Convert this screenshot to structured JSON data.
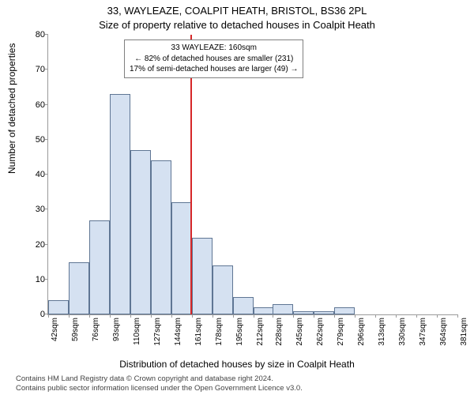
{
  "title_main": "33, WAYLEAZE, COALPIT HEATH, BRISTOL, BS36 2PL",
  "title_sub": "Size of property relative to detached houses in Coalpit Heath",
  "ylabel": "Number of detached properties",
  "xlabel": "Distribution of detached houses by size in Coalpit Heath",
  "footer_line1": "Contains HM Land Registry data © Crown copyright and database right 2024.",
  "footer_line2": "Contains public sector information licensed under the Open Government Licence v3.0.",
  "chart": {
    "type": "histogram",
    "ylim": [
      0,
      80
    ],
    "ytick_step": 10,
    "yticks": [
      0,
      10,
      20,
      30,
      40,
      50,
      60,
      70,
      80
    ],
    "marker_x_value": 160,
    "xtick_labels": [
      "42sqm",
      "59sqm",
      "76sqm",
      "93sqm",
      "110sqm",
      "127sqm",
      "144sqm",
      "161sqm",
      "178sqm",
      "195sqm",
      "212sqm",
      "228sqm",
      "245sqm",
      "262sqm",
      "279sqm",
      "296sqm",
      "313sqm",
      "330sqm",
      "347sqm",
      "364sqm",
      "381sqm"
    ],
    "xtick_values": [
      42,
      59,
      76,
      93,
      110,
      127,
      144,
      161,
      178,
      195,
      212,
      228,
      245,
      262,
      279,
      296,
      313,
      330,
      347,
      364,
      381
    ],
    "x_min": 42,
    "x_max": 381,
    "bar_width_value": 17,
    "bars": [
      {
        "x": 42,
        "y": 4
      },
      {
        "x": 59,
        "y": 15
      },
      {
        "x": 76,
        "y": 27
      },
      {
        "x": 93,
        "y": 63
      },
      {
        "x": 110,
        "y": 47
      },
      {
        "x": 127,
        "y": 44
      },
      {
        "x": 144,
        "y": 32
      },
      {
        "x": 161,
        "y": 22
      },
      {
        "x": 178,
        "y": 14
      },
      {
        "x": 195,
        "y": 5
      },
      {
        "x": 212,
        "y": 2
      },
      {
        "x": 228,
        "y": 3
      },
      {
        "x": 245,
        "y": 1
      },
      {
        "x": 262,
        "y": 1
      },
      {
        "x": 279,
        "y": 2
      },
      {
        "x": 296,
        "y": 0
      },
      {
        "x": 313,
        "y": 0
      },
      {
        "x": 330,
        "y": 0
      },
      {
        "x": 347,
        "y": 0
      },
      {
        "x": 364,
        "y": 0
      }
    ],
    "bar_fill_color": "#d5e1f1",
    "bar_edge_color": "#5f7694",
    "marker_color": "#d62728",
    "axis_color": "#9a9a9a",
    "background_color": "#ffffff",
    "tick_fontsize": 11,
    "label_fontsize": 12,
    "title_fontsize": 13,
    "anno_fontsize": 10
  },
  "annotation": {
    "line1": "33 WAYLEAZE: 160sqm",
    "line2": "← 82% of detached houses are smaller (231)",
    "line3": "17% of semi-detached houses are larger (49) →"
  }
}
